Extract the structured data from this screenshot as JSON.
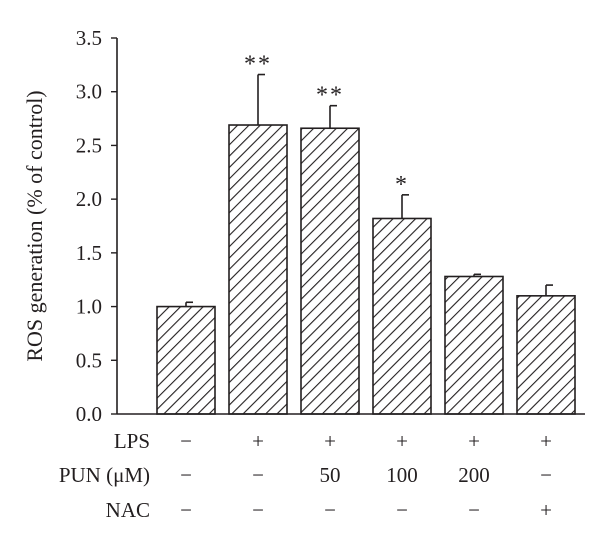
{
  "chart_data": {
    "type": "bar",
    "title": "",
    "xlabel": "",
    "ylabel": "ROS generation (% of control)",
    "ylim": [
      0,
      3.5
    ],
    "y_ticks": [
      "0.0",
      "0.5",
      "1.0",
      "1.5",
      "2.0",
      "2.5",
      "3.0",
      "3.5"
    ],
    "y_tick_values": [
      0,
      0.5,
      1.0,
      1.5,
      2.0,
      2.5,
      3.0,
      3.5
    ],
    "bar_fill": "diagonal hatch",
    "bar_color": "#231f20",
    "bars": [
      {
        "value": 1.0,
        "error": 0.04,
        "significance": ""
      },
      {
        "value": 2.69,
        "error": 0.47,
        "significance": "**"
      },
      {
        "value": 2.66,
        "error": 0.21,
        "significance": "**"
      },
      {
        "value": 1.82,
        "error": 0.22,
        "significance": "*"
      },
      {
        "value": 1.28,
        "error": 0.02,
        "significance": ""
      },
      {
        "value": 1.1,
        "error": 0.1,
        "significance": ""
      }
    ],
    "treatment_table": [
      {
        "label": "LPS",
        "values": [
          "−",
          "+",
          "+",
          "+",
          "+",
          "+"
        ]
      },
      {
        "label": "PUN (μM)",
        "values": [
          "−",
          "−",
          "50",
          "100",
          "200",
          "−"
        ]
      },
      {
        "label": "NAC",
        "values": [
          "−",
          "−",
          "−",
          "−",
          "−",
          "+"
        ]
      }
    ]
  }
}
